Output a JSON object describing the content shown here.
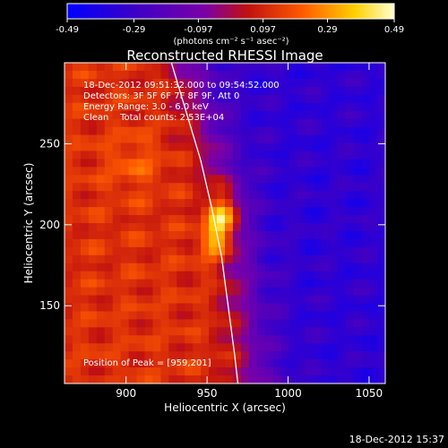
{
  "colorbar": {
    "tick_labels": [
      "-0.49",
      "-0.29",
      "-0.097",
      "0.097",
      "0.29",
      "0.49"
    ],
    "tick_values": [
      -0.49,
      -0.29,
      -0.097,
      0.097,
      0.29,
      0.49
    ],
    "range": [
      -0.49,
      0.49
    ],
    "unit_label": "(photons cm⁻² s⁻¹ asec⁻²)",
    "colormap": [
      "#0000ff",
      "#3a00c8",
      "#7a00a8",
      "#c01010",
      "#ff5a00",
      "#ffd000",
      "#ffffd0"
    ]
  },
  "chart_data": {
    "type": "heatmap",
    "title": "Reconstructed RHESSI Image",
    "xlabel": "Heliocentric X (arcsec)",
    "ylabel": "Heliocentric Y (arcsec)",
    "xlim": [
      862,
      1060
    ],
    "ylim": [
      102,
      300
    ],
    "xticks": [
      900,
      950,
      1000,
      1050
    ],
    "yticks": [
      150,
      200,
      250
    ],
    "annotations": [
      "18-Dec-2012 09:51:32.000 to 09:54:52.000",
      "Detectors: 3F 5F 6F 7F 8F 9F, Att 0",
      "Energy Range: 3.0 - 6.0 keV",
      "Clean    Total counts: 2.53E+04"
    ],
    "peak_label": "Position of Peak = [959,201]",
    "peak": {
      "x": 959,
      "y": 201,
      "value": 0.49
    },
    "limb_curve": [
      [
        928,
        300
      ],
      [
        937,
        270
      ],
      [
        946,
        240
      ],
      [
        953,
        210
      ],
      [
        959,
        180
      ],
      [
        963,
        150
      ],
      [
        967,
        120
      ],
      [
        969,
        102
      ]
    ],
    "background_level_east": 0.12,
    "background_level_west": -0.33
  },
  "footer": {
    "date_stamp": "18-Dec-2012 15:37"
  }
}
